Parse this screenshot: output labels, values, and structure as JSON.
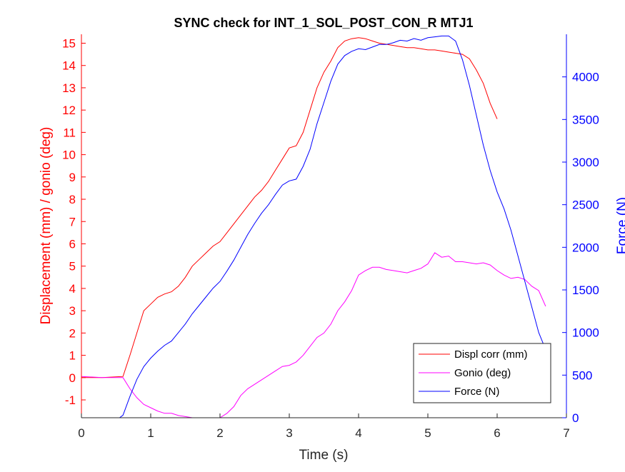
{
  "chart_data": {
    "type": "line",
    "title": "SYNC check for INT_1_SOL_POST_CON_R MTJ1",
    "xlabel": "Time (s)",
    "ylabel_left": "Displacement (mm) / gonio (deg)",
    "ylabel_right": "Force (N)",
    "xlim": [
      0,
      7
    ],
    "ylim_left": [
      -1.8,
      15.4
    ],
    "ylim_right": [
      0,
      4500
    ],
    "x_ticks": [
      "0",
      "1",
      "2",
      "3",
      "4",
      "5",
      "6",
      "7"
    ],
    "y_left_ticks": [
      "-1",
      "0",
      "1",
      "2",
      "3",
      "4",
      "5",
      "6",
      "7",
      "8",
      "9",
      "10",
      "11",
      "12",
      "13",
      "14",
      "15"
    ],
    "y_right_ticks": [
      "0",
      "500",
      "1000",
      "1500",
      "2000",
      "2500",
      "3000",
      "3500",
      "4000"
    ],
    "grid": false,
    "legend_position": "bottom-right",
    "colors": {
      "displ": "#ff0000",
      "gonio": "#ff00ff",
      "force": "#0000ff"
    },
    "series": [
      {
        "name": "Displ corr (mm)",
        "axis": "left",
        "color": "#ff0000",
        "x": [
          0,
          0.3,
          0.6,
          0.7,
          0.8,
          0.9,
          1.0,
          1.1,
          1.2,
          1.3,
          1.4,
          1.5,
          1.6,
          1.7,
          1.8,
          1.9,
          2.0,
          2.1,
          2.2,
          2.3,
          2.4,
          2.5,
          2.6,
          2.7,
          2.8,
          2.9,
          3.0,
          3.1,
          3.2,
          3.3,
          3.4,
          3.5,
          3.6,
          3.7,
          3.8,
          3.9,
          4.0,
          4.1,
          4.2,
          4.3,
          4.4,
          4.5,
          4.6,
          4.7,
          4.8,
          4.9,
          5.0,
          5.1,
          5.2,
          5.3,
          5.4,
          5.5,
          5.6,
          5.7,
          5.8,
          5.9,
          6.0
        ],
        "y": [
          0.0,
          0.0,
          0.05,
          1.0,
          2.0,
          3.0,
          3.3,
          3.6,
          3.75,
          3.85,
          4.1,
          4.5,
          5.0,
          5.3,
          5.6,
          5.9,
          6.1,
          6.5,
          6.9,
          7.3,
          7.7,
          8.1,
          8.4,
          8.8,
          9.3,
          9.8,
          10.3,
          10.4,
          11.0,
          12.0,
          13.0,
          13.7,
          14.2,
          14.8,
          15.1,
          15.2,
          15.25,
          15.2,
          15.1,
          15.0,
          14.95,
          14.9,
          14.85,
          14.8,
          14.8,
          14.75,
          14.7,
          14.7,
          14.65,
          14.6,
          14.55,
          14.5,
          14.3,
          13.8,
          13.2,
          12.3,
          11.6
        ]
      },
      {
        "name": "Gonio (deg)",
        "axis": "left",
        "color": "#ff00ff",
        "x": [
          0,
          0.3,
          0.6,
          0.7,
          0.8,
          0.9,
          1.0,
          1.1,
          1.2,
          1.3,
          1.4,
          1.5,
          1.6,
          1.7,
          1.8,
          1.9,
          2.0,
          2.1,
          2.2,
          2.3,
          2.4,
          2.5,
          2.6,
          2.7,
          2.8,
          2.9,
          3.0,
          3.1,
          3.2,
          3.3,
          3.4,
          3.5,
          3.6,
          3.7,
          3.8,
          3.9,
          4.0,
          4.1,
          4.2,
          4.3,
          4.4,
          4.5,
          4.6,
          4.7,
          4.8,
          4.9,
          5.0,
          5.1,
          5.2,
          5.3,
          5.4,
          5.5,
          5.6,
          5.7,
          5.8,
          5.9,
          6.0,
          6.1,
          6.2,
          6.3,
          6.4,
          6.5,
          6.6,
          6.7
        ],
        "y": [
          0.05,
          0.0,
          0.0,
          -0.5,
          -0.9,
          -1.2,
          -1.35,
          -1.5,
          -1.6,
          -1.6,
          -1.7,
          -1.75,
          -1.8,
          -1.8,
          -1.8,
          -1.8,
          -1.8,
          -1.6,
          -1.3,
          -0.8,
          -0.5,
          -0.3,
          -0.1,
          0.1,
          0.3,
          0.5,
          0.55,
          0.7,
          1.0,
          1.4,
          1.8,
          2.0,
          2.4,
          3.0,
          3.4,
          3.9,
          4.6,
          4.8,
          4.95,
          4.95,
          4.85,
          4.8,
          4.75,
          4.7,
          4.8,
          4.9,
          5.1,
          5.6,
          5.4,
          5.45,
          5.2,
          5.2,
          5.15,
          5.1,
          5.15,
          5.05,
          4.8,
          4.6,
          4.45,
          4.5,
          4.4,
          4.1,
          3.9,
          3.2
        ]
      },
      {
        "name": "Force (N)",
        "axis": "right",
        "color": "#0000ff",
        "x": [
          0,
          0.3,
          0.55,
          0.6,
          0.7,
          0.8,
          0.9,
          1.0,
          1.1,
          1.2,
          1.3,
          1.4,
          1.5,
          1.6,
          1.7,
          1.8,
          1.9,
          2.0,
          2.1,
          2.2,
          2.3,
          2.4,
          2.5,
          2.6,
          2.7,
          2.8,
          2.9,
          3.0,
          3.1,
          3.2,
          3.3,
          3.4,
          3.5,
          3.6,
          3.7,
          3.8,
          3.9,
          4.0,
          4.1,
          4.2,
          4.3,
          4.4,
          4.5,
          4.6,
          4.7,
          4.8,
          4.9,
          5.0,
          5.1,
          5.2,
          5.3,
          5.4,
          5.5,
          5.6,
          5.7,
          5.8,
          5.9,
          6.0,
          6.1,
          6.2,
          6.3,
          6.4,
          6.5,
          6.6,
          6.7
        ],
        "y": [
          0,
          0,
          0,
          30,
          250,
          450,
          600,
          700,
          780,
          850,
          900,
          1000,
          1100,
          1220,
          1320,
          1420,
          1520,
          1600,
          1720,
          1850,
          2000,
          2150,
          2280,
          2400,
          2500,
          2620,
          2730,
          2780,
          2800,
          2950,
          3150,
          3450,
          3700,
          3950,
          4150,
          4250,
          4300,
          4330,
          4320,
          4350,
          4380,
          4380,
          4400,
          4430,
          4420,
          4450,
          4430,
          4460,
          4470,
          4480,
          4480,
          4420,
          4200,
          3900,
          3550,
          3200,
          2900,
          2650,
          2450,
          2200,
          1900,
          1600,
          1300,
          1000,
          800
        ]
      }
    ]
  }
}
